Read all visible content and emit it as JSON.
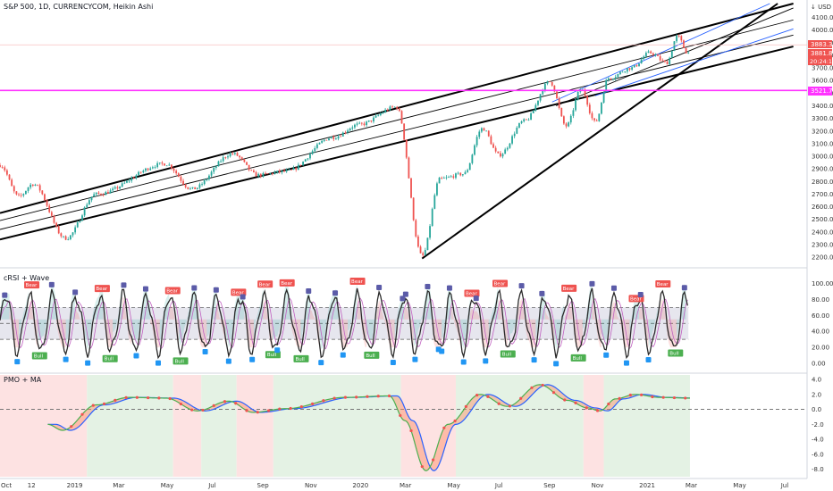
{
  "header": {
    "title": "S&P 500, 1D, CURRENCYCOM, Heikin Ashi",
    "currency": "↓ USD"
  },
  "price_tags": {
    "high": "3883.3",
    "close": "3881.8",
    "countdown": "20:24:14",
    "line": "3521.7"
  },
  "colors": {
    "up": "#26a69a",
    "down": "#ef5350",
    "magenta": "#ff33ff",
    "blue": "#2962ff"
  },
  "chart_data": [
    {
      "type": "line",
      "title": "S&P 500, 1D, CURRENCYCOM, Heikin Ashi",
      "x_ticks": [
        "Oct",
        "12",
        "2019",
        "Mar",
        "May",
        "Jul",
        "Sep",
        "Nov",
        "2020",
        "Mar",
        "May",
        "Jul",
        "Sep",
        "Nov",
        "2021",
        "Mar",
        "May",
        "Jul"
      ],
      "y_ticks": [
        2200,
        2300,
        2400,
        2500,
        2600,
        2700,
        2800,
        2900,
        3000,
        3100,
        3200,
        3300,
        3400,
        3500,
        3600,
        3700,
        3800,
        3900,
        4000,
        4100
      ],
      "ylim": [
        2130,
        4210
      ],
      "horizontal_levels": [
        3521.7,
        3883.3
      ],
      "key_points": [
        {
          "date": "2018-10-01",
          "value": 2930
        },
        {
          "date": "2018-10-25",
          "value": 2680
        },
        {
          "date": "2018-11-12",
          "value": 2780
        },
        {
          "date": "2018-12-24",
          "value": 2350
        },
        {
          "date": "2019-02-01",
          "value": 2700
        },
        {
          "date": "2019-04-30",
          "value": 2940
        },
        {
          "date": "2019-06-03",
          "value": 2740
        },
        {
          "date": "2019-07-25",
          "value": 3020
        },
        {
          "date": "2019-08-26",
          "value": 2850
        },
        {
          "date": "2019-10-02",
          "value": 2880
        },
        {
          "date": "2019-11-30",
          "value": 3150
        },
        {
          "date": "2020-01-02",
          "value": 3250
        },
        {
          "date": "2020-02-19",
          "value": 3390
        },
        {
          "date": "2020-03-23",
          "value": 2210
        },
        {
          "date": "2020-04-15",
          "value": 2820
        },
        {
          "date": "2020-05-15",
          "value": 2860
        },
        {
          "date": "2020-06-08",
          "value": 3220
        },
        {
          "date": "2020-06-29",
          "value": 3010
        },
        {
          "date": "2020-08-01",
          "value": 3280
        },
        {
          "date": "2020-09-02",
          "value": 3590
        },
        {
          "date": "2020-09-23",
          "value": 3240
        },
        {
          "date": "2020-10-12",
          "value": 3530
        },
        {
          "date": "2020-10-30",
          "value": 3270
        },
        {
          "date": "2020-11-16",
          "value": 3620
        },
        {
          "date": "2020-12-15",
          "value": 3700
        },
        {
          "date": "2021-01-08",
          "value": 3820
        },
        {
          "date": "2021-01-29",
          "value": 3740
        },
        {
          "date": "2021-02-12",
          "value": 3950
        },
        {
          "date": "2021-02-25",
          "value": 3820
        }
      ]
    },
    {
      "type": "line",
      "title": "cRSI + Wave",
      "y_ticks": [
        0,
        20,
        40,
        60,
        80,
        100
      ],
      "ylim": [
        -10,
        115
      ],
      "band_levels": [
        30,
        50,
        70
      ],
      "signal_labels": {
        "bear": "Bear",
        "bull": "Bull",
        "hbull": "H Bull",
        "hbear": "H Bear"
      }
    },
    {
      "type": "line",
      "title": "PMO + MA",
      "y_ticks": [
        -8,
        -6,
        -4,
        -2,
        0,
        2,
        4
      ],
      "ylim": [
        -9,
        4.6
      ],
      "zero_line": 0,
      "key_points": [
        {
          "date": "2018-12-01",
          "value": -2.0
        },
        {
          "date": "2018-12-20",
          "value": -2.8
        },
        {
          "date": "2019-02-01",
          "value": 0.6
        },
        {
          "date": "2019-03-15",
          "value": 1.6
        },
        {
          "date": "2019-05-01",
          "value": 1.5
        },
        {
          "date": "2019-06-10",
          "value": -0.2
        },
        {
          "date": "2019-07-20",
          "value": 1.1
        },
        {
          "date": "2019-08-20",
          "value": -0.4
        },
        {
          "date": "2019-10-01",
          "value": 0.1
        },
        {
          "date": "2019-12-15",
          "value": 1.6
        },
        {
          "date": "2020-02-10",
          "value": 1.8
        },
        {
          "date": "2020-03-01",
          "value": -1.5
        },
        {
          "date": "2020-03-28",
          "value": -8.2
        },
        {
          "date": "2020-04-25",
          "value": -2.0
        },
        {
          "date": "2020-06-05",
          "value": 2.0
        },
        {
          "date": "2020-07-10",
          "value": 0.4
        },
        {
          "date": "2020-08-20",
          "value": 3.3
        },
        {
          "date": "2020-09-25",
          "value": 1.2
        },
        {
          "date": "2020-10-20",
          "value": 0.2
        },
        {
          "date": "2020-11-05",
          "value": -0.2
        },
        {
          "date": "2020-11-25",
          "value": 1.4
        },
        {
          "date": "2020-12-20",
          "value": 2.0
        },
        {
          "date": "2021-01-20",
          "value": 1.6
        },
        {
          "date": "2021-02-28",
          "value": 1.5
        }
      ]
    }
  ]
}
